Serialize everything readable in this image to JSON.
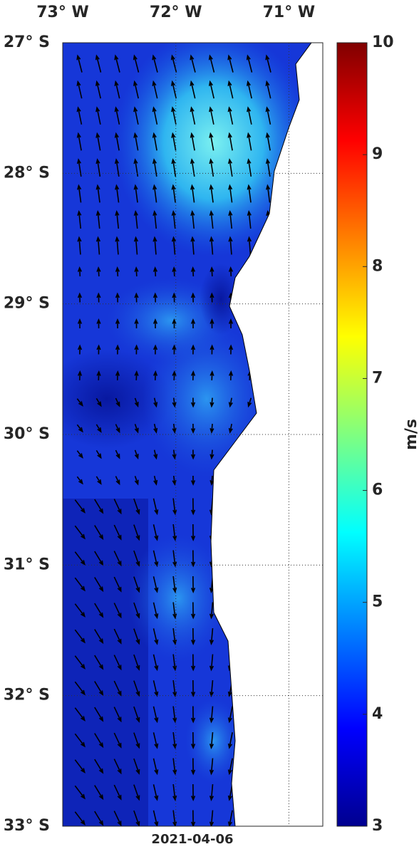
{
  "map": {
    "xlim": [
      -73.0,
      -70.7
    ],
    "ylim": [
      -33,
      -27
    ],
    "lon_ticks": [
      {
        "value": -73,
        "label": "73° W"
      },
      {
        "value": -72,
        "label": "72° W"
      },
      {
        "value": -71,
        "label": "71° W"
      }
    ],
    "lat_ticks": [
      {
        "value": -27,
        "label": "27° S"
      },
      {
        "value": -28,
        "label": "28° S"
      },
      {
        "value": -29,
        "label": "29° S"
      },
      {
        "value": -30,
        "label": "30° S"
      },
      {
        "value": -31,
        "label": "31° S"
      },
      {
        "value": -32,
        "label": "32° S"
      },
      {
        "value": -33,
        "label": "33° S"
      }
    ],
    "date": "2021-04-06",
    "grid": true
  },
  "colorbar": {
    "range": [
      3,
      10
    ],
    "ticks": [
      3,
      4,
      5,
      6,
      7,
      8,
      9,
      10
    ],
    "label": "m/s"
  }
}
